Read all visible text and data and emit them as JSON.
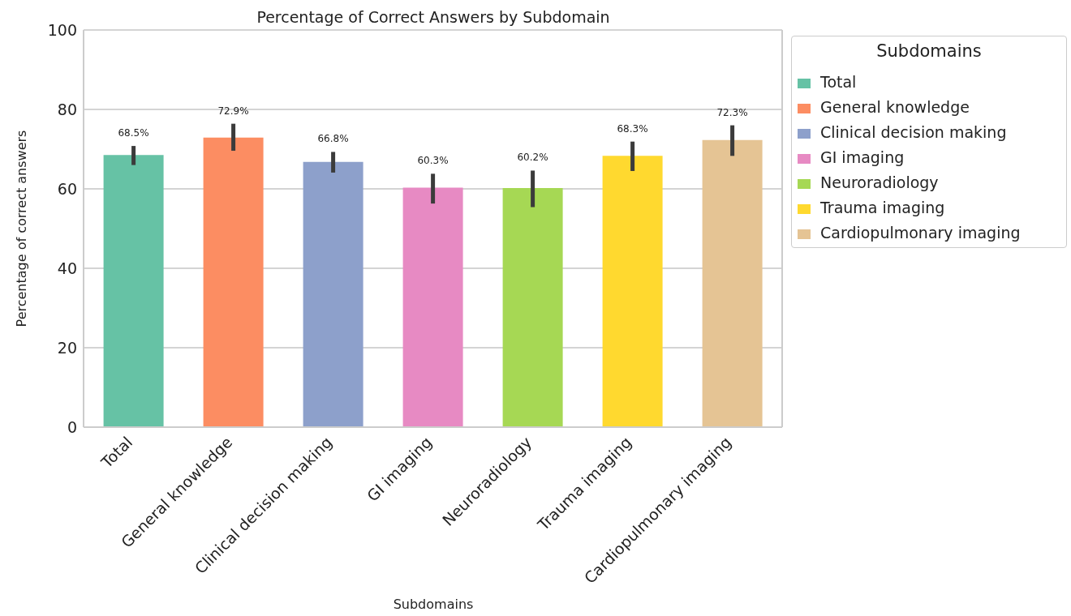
{
  "chart_data": {
    "type": "bar",
    "title": "Percentage of Correct Answers by Subdomain",
    "xlabel": "Subdomains",
    "ylabel": "Percentage of correct answers",
    "legend_title": "Subdomains",
    "categories": [
      "Total",
      "General knowledge",
      "Clinical decision making",
      "GI imaging",
      "Neuroradiology",
      "Trauma imaging",
      "Cardiopulmonary imaging"
    ],
    "stacked": true,
    "series": [
      {
        "name": "Total",
        "color": "#66c2a5",
        "values": [
          68.5,
          null,
          null,
          null,
          null,
          null,
          null
        ],
        "errors": [
          [
            66.0,
            70.8
          ],
          null,
          null,
          null,
          null,
          null,
          null
        ],
        "value_labels": [
          "68.5%",
          null,
          null,
          null,
          null,
          null,
          null
        ]
      },
      {
        "name": "General knowledge",
        "color": "#fc8d62",
        "values": [
          null,
          72.9,
          null,
          null,
          null,
          null,
          null
        ],
        "errors": [
          null,
          [
            69.6,
            76.4
          ],
          null,
          null,
          null,
          null,
          null
        ],
        "value_labels": [
          null,
          "72.9%",
          null,
          null,
          null,
          null,
          null
        ]
      },
      {
        "name": "Clinical decision making",
        "color": "#8da0cb",
        "values": [
          null,
          null,
          66.8,
          null,
          null,
          null,
          null
        ],
        "errors": [
          null,
          null,
          [
            64.1,
            69.3
          ],
          null,
          null,
          null,
          null
        ],
        "value_labels": [
          null,
          null,
          "66.8%",
          null,
          null,
          null,
          null
        ]
      },
      {
        "name": "GI imaging",
        "color": "#e78ac3",
        "values": [
          null,
          null,
          null,
          60.3,
          null,
          null,
          null
        ],
        "errors": [
          null,
          null,
          null,
          [
            56.3,
            63.8
          ],
          null,
          null,
          null
        ],
        "value_labels": [
          null,
          null,
          null,
          "60.3%",
          null,
          null,
          null
        ]
      },
      {
        "name": "Neuroradiology",
        "color": "#a6d854",
        "values": [
          null,
          null,
          null,
          null,
          60.2,
          null,
          null
        ],
        "errors": [
          null,
          null,
          null,
          null,
          [
            55.4,
            64.6
          ],
          null,
          null
        ],
        "value_labels": [
          null,
          null,
          null,
          null,
          "60.2%",
          null,
          null
        ]
      },
      {
        "name": "Trauma imaging",
        "color": "#ffd92f",
        "values": [
          null,
          null,
          null,
          null,
          null,
          68.3,
          null
        ],
        "errors": [
          null,
          null,
          null,
          null,
          null,
          [
            64.5,
            71.9
          ],
          null
        ],
        "value_labels": [
          null,
          null,
          null,
          null,
          null,
          "68.3%",
          null
        ]
      },
      {
        "name": "Cardiopulmonary imaging",
        "color": "#e5c494",
        "values": [
          null,
          null,
          null,
          null,
          null,
          null,
          72.3
        ],
        "errors": [
          null,
          null,
          null,
          null,
          null,
          null,
          [
            68.3,
            76.0
          ]
        ],
        "value_labels": [
          null,
          null,
          null,
          null,
          null,
          null,
          "72.3%"
        ]
      }
    ],
    "ylim": [
      0,
      100
    ],
    "yticks": [
      0,
      20,
      40,
      60,
      80,
      100
    ],
    "grid": "y",
    "legend": "top right"
  }
}
